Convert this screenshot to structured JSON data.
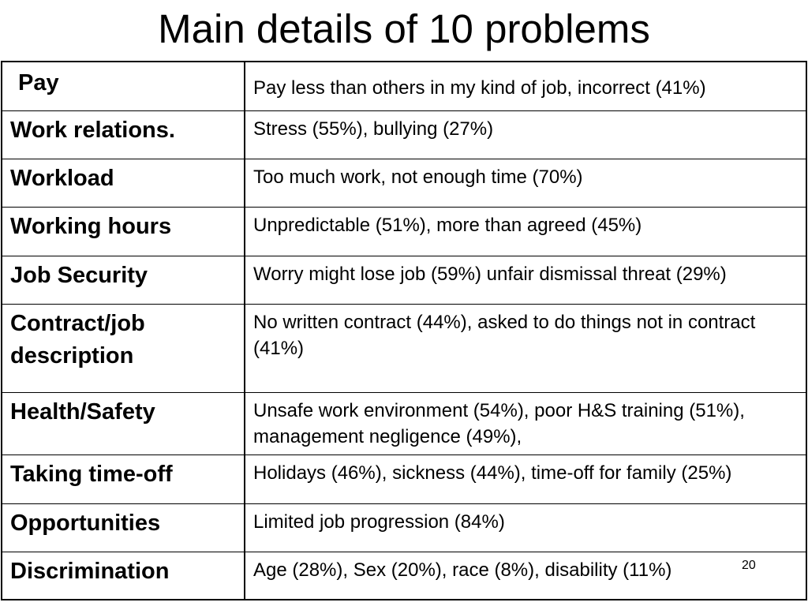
{
  "title": "Main details of 10 problems",
  "rows": [
    {
      "category": "Pay",
      "details": "Pay less than others in my kind of  job, incorrect (41%)"
    },
    {
      "category": "Work relations.",
      "details": "Stress (55%), bullying (27%)"
    },
    {
      "category": "Workload",
      "details": "Too much work, not enough time (70%)"
    },
    {
      "category": "Working hours",
      "details": "Unpredictable (51%), more than agreed (45%)"
    },
    {
      "category": "Job Security",
      "details": "Worry might lose job (59%) unfair dismissal threat (29%)"
    },
    {
      "category": "Contract/job description",
      "details": "No written contract (44%), asked to do things not in contract (41%)"
    },
    {
      "category": "Health/Safety",
      "details": "Unsafe work environment (54%), poor H&S training (51%), management negligence (49%),"
    },
    {
      "category": "Taking time-off",
      "details": "Holidays (46%), sickness (44%), time-off for family (25%)"
    },
    {
      "category": "Opportunities",
      "details": "Limited job progression (84%)"
    },
    {
      "category": "Discrimination",
      "details": "Age (28%), Sex (20%), race (8%), disability (11%)"
    }
  ],
  "slide_number": "20"
}
